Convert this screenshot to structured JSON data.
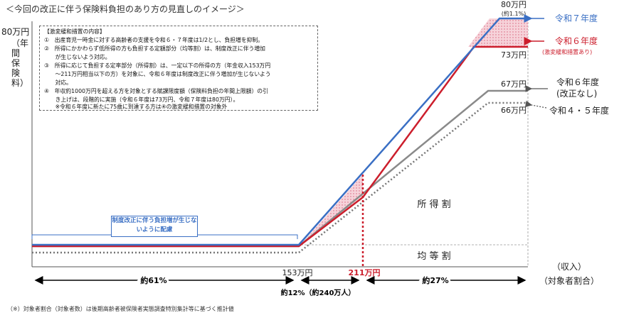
{
  "title": "＜今回の改正に伴う保険料負担のあり方の見直しのイメージ＞",
  "y_max_label": "80万円",
  "y_axis_label": "（年間保険料）",
  "income_label": "（収入）",
  "share_label": "（対象者割合）",
  "notes": {
    "title": "【激変緩和措置の内容】",
    "items": [
      "①　出産育児一時金に対する高齢者の支援を令和６・７年度は1/2とし、負担増を抑制。",
      "②　所得にかかわらず低所得の方も負担する定額部分（均等割）は、制度改正に伴う増加",
      "　　が生じないよう対応。",
      "③　所得に応じて負担する定率部分（所得割）は、一定以下の所得の方（年金収入153万円",
      "　　～211万円相当以下の方）を対象に、令和６年度は制度改正に伴う増加が生じないよう",
      "　　対応。",
      "④　年収約1000万円を超える方を対象とする賦課限度額（保険料負担の年間上限額）の引",
      "　　き上げは、段階的に実施（令和６年度は73万円、令和７年度は80万円）。",
      "　　※令和６年度に新たに75歳に到達する方は④の激変緩和措置の対象外"
    ]
  },
  "callout": "制度改正に伴う負担増が生じないように配慮",
  "region_labels": {
    "income_share": "所 得 割",
    "per_capita": "均 等 割"
  },
  "footnote": "（※）対象者割合（対象者数）は後期高齢者被保険者実態調査特別集計等に基づく推計値",
  "colors": {
    "r7": "#3a6fc4",
    "r6": "#cc1e2c",
    "r6_no": "#7a7a7a",
    "r45": "#7a7a7a",
    "shade": "#e9a0b0"
  },
  "chart_data": {
    "type": "line",
    "x_unit": "万円",
    "y_unit": "万円",
    "x_ticks": [
      153,
      211
    ],
    "x_tick_labels": [
      "153万円",
      "211万円"
    ],
    "series": [
      {
        "name": "令和７年度",
        "note": "(約1.1%)",
        "cap_label": "80万円",
        "cap": 80,
        "style": "solid",
        "color": "#3a6fc4"
      },
      {
        "name": "令和６年度",
        "note": "(激変緩和措置あり)",
        "cap_label": "73万円",
        "cap": 73,
        "style": "solid",
        "color": "#cc1e2c"
      },
      {
        "name": "令和６年度\n(改正なし)",
        "cap_label": "67万円",
        "cap": 67,
        "style": "solid",
        "color": "#7a7a7a"
      },
      {
        "name": "令和４・５年度",
        "cap_label": "66万円",
        "cap": 66,
        "style": "dotted",
        "color": "#7a7a7a"
      }
    ],
    "shares": [
      {
        "label": "約61%"
      },
      {
        "label": "約12%（約240万人）"
      },
      {
        "label": "約27%"
      }
    ]
  }
}
